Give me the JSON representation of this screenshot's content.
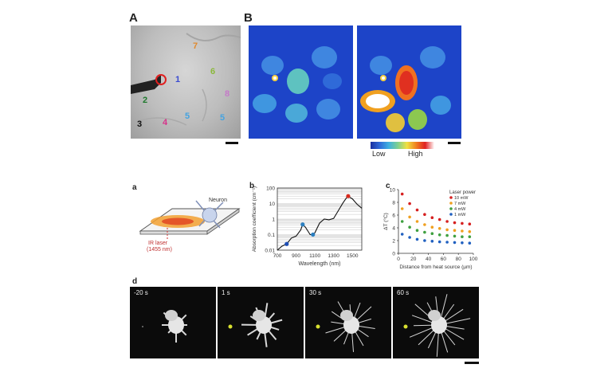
{
  "panel_labels": {
    "A": "A",
    "B": "B",
    "a": "a",
    "b": "b",
    "c": "c",
    "d": "d"
  },
  "panel_A": {
    "cells": [
      {
        "n": "1",
        "color": "#3a4bd1"
      },
      {
        "n": "2",
        "color": "#1f7a2e"
      },
      {
        "n": "3",
        "color": "#111111"
      },
      {
        "n": "4",
        "color": "#d6338a"
      },
      {
        "n": "5",
        "color": "#45a3e0"
      },
      {
        "n": "5",
        "color": "#45a3e0"
      },
      {
        "n": "6",
        "color": "#8ab83a"
      },
      {
        "n": "7",
        "color": "#e08a2e"
      },
      {
        "n": "8",
        "color": "#c679c9"
      }
    ]
  },
  "colorbar": {
    "low": "Low",
    "high": "High"
  },
  "panel_a": {
    "neuron_label": "Neuron",
    "laser_label": "IR laser",
    "laser_wavelength": "(1455 nm)"
  },
  "chart_data": [
    {
      "type": "line",
      "panel": "b",
      "xlabel": "Wavelength (nm)",
      "ylabel": "Absorption coefficient (cm⁻¹)",
      "yscale": "log",
      "xlim": [
        700,
        1600
      ],
      "ylim": [
        0.01,
        100
      ],
      "x_ticks": [
        "700",
        "900",
        "1100",
        "1300",
        "1500"
      ],
      "y_ticks": [
        "0.01",
        "0.1",
        "1",
        "10",
        "100"
      ],
      "x": [
        700,
        750,
        800,
        850,
        900,
        950,
        970,
        1000,
        1050,
        1080,
        1100,
        1150,
        1200,
        1250,
        1300,
        1350,
        1400,
        1450,
        1500,
        1550,
        1600
      ],
      "y": [
        0.01,
        0.018,
        0.025,
        0.06,
        0.08,
        0.2,
        0.45,
        0.3,
        0.1,
        0.1,
        0.13,
        0.55,
        1.0,
        0.9,
        1.1,
        3.5,
        11,
        30,
        20,
        9,
        5
      ],
      "markers": [
        {
          "x": 800,
          "y": 0.025,
          "color": "#1f4fb5"
        },
        {
          "x": 970,
          "y": 0.45,
          "color": "#2b7fc0"
        },
        {
          "x": 1080,
          "y": 0.1,
          "color": "#2b7fc0"
        },
        {
          "x": 1455,
          "y": 30,
          "color": "#d92a1e"
        }
      ]
    },
    {
      "type": "scatter",
      "panel": "c",
      "xlabel": "Distance from heat source (µm)",
      "ylabel": "ΔT (°C)",
      "xlim": [
        0,
        100
      ],
      "ylim": [
        0,
        10
      ],
      "x_ticks": [
        "0",
        "20",
        "40",
        "60",
        "80",
        "100"
      ],
      "y_ticks": [
        "0",
        "2",
        "4",
        "6",
        "8",
        "10"
      ],
      "legend_title": "Laser power",
      "x": [
        5,
        15,
        25,
        35,
        45,
        55,
        65,
        75,
        85,
        95
      ],
      "series": [
        {
          "name": "10 mW",
          "color": "#d62020",
          "values": [
            9.3,
            7.8,
            6.8,
            6.1,
            5.6,
            5.3,
            5.0,
            4.8,
            4.7,
            4.6
          ]
        },
        {
          "name": "7 mW",
          "color": "#f0a020",
          "values": [
            7.0,
            5.7,
            5.0,
            4.5,
            4.1,
            3.9,
            3.7,
            3.6,
            3.5,
            3.4
          ]
        },
        {
          "name": "4 mW",
          "color": "#3fa040",
          "values": [
            5.0,
            4.1,
            3.6,
            3.3,
            3.1,
            2.9,
            2.8,
            2.7,
            2.6,
            2.6
          ]
        },
        {
          "name": "1 mW",
          "color": "#2060c0",
          "values": [
            3.0,
            2.5,
            2.2,
            2.0,
            1.9,
            1.8,
            1.75,
            1.7,
            1.65,
            1.6
          ]
        }
      ]
    }
  ],
  "panel_d": {
    "frames": [
      "-20 s",
      "1 s",
      "30 s",
      "60 s"
    ]
  }
}
